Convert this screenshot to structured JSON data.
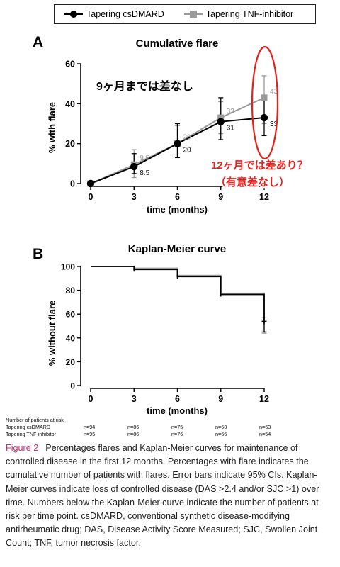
{
  "legend": {
    "items": [
      {
        "label": "Tapering csDMARD",
        "color": "#000000",
        "marker": "circle"
      },
      {
        "label": "Tapering TNF-inhibitor",
        "color": "#9a9a9a",
        "marker": "square"
      }
    ]
  },
  "panel_a": {
    "letter": "A"
  },
  "panel_b": {
    "letter": "B"
  },
  "colors": {
    "csdmard": "#000000",
    "tnf": "#9a9a9a",
    "annotation": "#e8201c",
    "figure_label": "#e2246c"
  },
  "annotations": {
    "no_difference": "9ヶ月までは差なし",
    "month12_question": "12ヶ月では差あり？",
    "not_significant": "（有意差なし）"
  },
  "chart_data": [
    {
      "type": "line",
      "title": "Cumulative flare",
      "xlabel": "time  (months)",
      "ylabel": "% with flare",
      "x": [
        0,
        3,
        6,
        9,
        12
      ],
      "xlim": [
        0,
        12
      ],
      "ylim": [
        0,
        60
      ],
      "yticks": [
        0,
        20,
        40,
        60
      ],
      "grid": false,
      "series": [
        {
          "name": "Tapering csDMARD",
          "values": [
            0,
            8.5,
            20,
            31,
            33
          ],
          "ci_low": [
            0,
            5,
            13,
            22,
            24
          ],
          "ci_high": [
            0,
            15,
            30,
            43,
            44
          ],
          "data_labels": [
            "",
            "8.5",
            "20",
            "31",
            "33"
          ]
        },
        {
          "name": "Tapering TNF-inhibitor",
          "values": [
            0,
            9.5,
            20,
            33,
            43
          ],
          "ci_low": [
            0,
            3,
            13,
            25,
            30
          ],
          "ci_high": [
            0,
            17,
            29,
            41,
            54
          ],
          "data_labels": [
            "",
            "9.5",
            "20",
            "33",
            "43"
          ]
        }
      ]
    },
    {
      "type": "line",
      "title": "Kaplan-Meier curve",
      "xlabel": "time (months)",
      "ylabel": "% without flare",
      "xticks": [
        0,
        3,
        6,
        9,
        12
      ],
      "xlim": [
        0,
        12
      ],
      "ylim": [
        0,
        100
      ],
      "yticks": [
        0,
        20,
        40,
        60,
        80,
        100
      ],
      "grid": false,
      "series": [
        {
          "name": "Tapering csDMARD",
          "steps": [
            [
              0,
              100
            ],
            [
              3,
              97.5
            ],
            [
              6,
              91.5
            ],
            [
              9,
              76.5
            ],
            [
              12,
              52
            ]
          ],
          "ci_at_12": [
            45,
            54
          ]
        },
        {
          "name": "Tapering TNF-inhibitor",
          "steps": [
            [
              0,
              100
            ],
            [
              3,
              98.5
            ],
            [
              6,
              92.5
            ],
            [
              9,
              77.5
            ],
            [
              12,
              51
            ]
          ],
          "ci_at_12": [
            44,
            57
          ]
        }
      ]
    }
  ],
  "risk_table": {
    "title": "Number of patients at risk",
    "rows": [
      {
        "label": "Tapering csDMARD",
        "values": [
          "n=94",
          "n=86",
          "n=75",
          "n=63",
          "n=63"
        ]
      },
      {
        "label": "Tapering TNF-inhibitor",
        "values": [
          "n=95",
          "n=86",
          "n=76",
          "n=66",
          "n=54"
        ]
      }
    ]
  },
  "caption": {
    "label": "Figure 2",
    "text": "Percentages flares and Kaplan-Meier curves for maintenance of controlled disease in the first 12 months. Percentages with flare indicates the cumulative number of patients with flares. Error bars indicate 95% CIs. Kaplan-Meier curves indicate loss of controlled disease (DAS >2.4 and/or SJC >1) over time. Numbers below the Kaplan-Meier curve indicate the number of patients at risk per time point. csDMARD, conventional synthetic disease-modifying antirheumatic drug; DAS, Disease Activity Score Measured; SJC, Swollen Joint Count; TNF, tumor necrosis factor."
  }
}
